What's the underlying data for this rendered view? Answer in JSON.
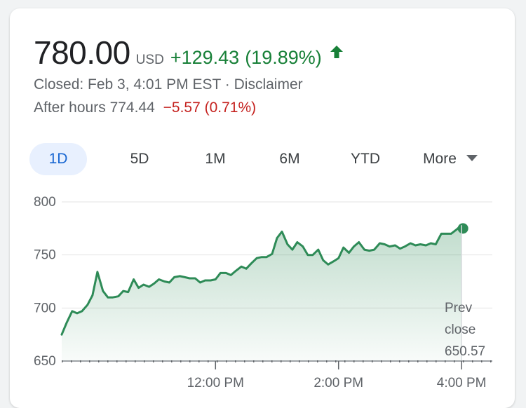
{
  "quote": {
    "price": "780.00",
    "currency": "USD",
    "change": "+129.43",
    "change_pct": "(19.89%)",
    "up_color": "#188038",
    "status": "Closed: Feb 3, 4:01 PM EST",
    "separator": "·",
    "disclaimer": "Disclaimer",
    "after_hours_label": "After hours",
    "after_hours_price": "774.44",
    "after_hours_change": "−5.57 (0.71%)",
    "down_color": "#c5221f"
  },
  "tabs": [
    {
      "label": "1D",
      "selected": true
    },
    {
      "label": "5D",
      "selected": false
    },
    {
      "label": "1M",
      "selected": false
    },
    {
      "label": "6M",
      "selected": false
    },
    {
      "label": "YTD",
      "selected": false
    },
    {
      "label": "More",
      "selected": false
    }
  ],
  "chart_data": {
    "type": "area",
    "y_ticks": [
      "800",
      "750",
      "700",
      "650"
    ],
    "ylim": [
      650,
      800
    ],
    "x_ticks": [
      "12:00 PM",
      "2:00 PM",
      "4:00 PM"
    ],
    "x_tick_values": [
      12,
      14,
      16
    ],
    "xlim": [
      9.5,
      16.5
    ],
    "prev_close_label": [
      "Prev",
      "close",
      "650.57"
    ],
    "prev_close": 650.57,
    "line_color": "#2e8b57",
    "series": [
      {
        "x": [
          9.5,
          9.58,
          9.67,
          9.75,
          9.83,
          9.92,
          10.0,
          10.08,
          10.17,
          10.25,
          10.33,
          10.42,
          10.5,
          10.58,
          10.67,
          10.75,
          10.83,
          10.92,
          11.0,
          11.08,
          11.17,
          11.25,
          11.33,
          11.42,
          11.5,
          11.58,
          11.67,
          11.75,
          11.83,
          11.92,
          12.0,
          12.08,
          12.17,
          12.25,
          12.33,
          12.42,
          12.5,
          12.58,
          12.67,
          12.75,
          12.83,
          12.92,
          13.0,
          13.08,
          13.17,
          13.25,
          13.33,
          13.42,
          13.5,
          13.58,
          13.67,
          13.75,
          13.83,
          13.92,
          14.0,
          14.08,
          14.17,
          14.25,
          14.33,
          14.42,
          14.5,
          14.58,
          14.67,
          14.75,
          14.83,
          14.92,
          15.0,
          15.08,
          15.17,
          15.25,
          15.33,
          15.42,
          15.5,
          15.58,
          15.67,
          15.75,
          15.83,
          15.92,
          16.0
        ],
        "y": [
          675,
          686,
          697,
          695,
          697,
          703,
          712,
          734,
          716,
          710,
          710,
          711,
          716,
          715,
          727,
          719,
          722,
          720,
          723,
          727,
          725,
          724,
          729,
          730,
          729,
          728,
          728,
          724,
          726,
          726,
          727,
          733,
          733,
          731,
          735,
          739,
          737,
          742,
          747,
          748,
          748,
          751,
          766,
          772,
          760,
          755,
          762,
          758,
          750,
          750,
          755,
          745,
          741,
          744,
          747,
          757,
          752,
          758,
          762,
          755,
          754,
          755,
          761,
          760,
          758,
          759,
          756,
          758,
          761,
          759,
          760,
          759,
          761,
          760,
          770,
          770,
          770,
          774,
          778
        ]
      }
    ],
    "end_value": 775
  }
}
